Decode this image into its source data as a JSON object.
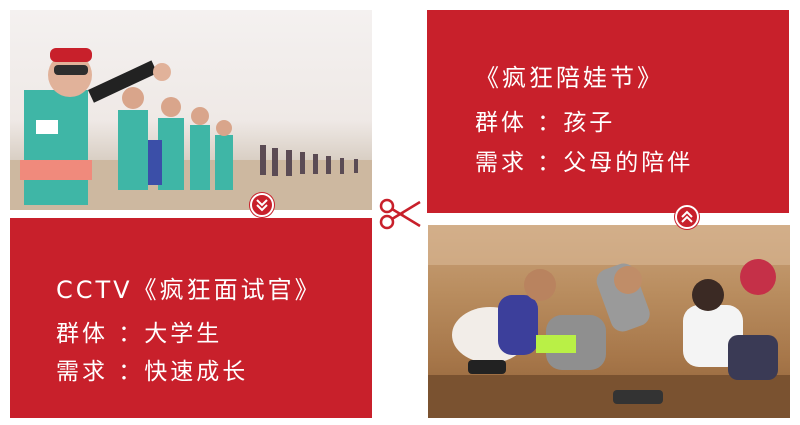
{
  "festival_card": {
    "title": "《疯狂陪娃节》",
    "group": "群体 ：孩子",
    "need": "需求 ：父母的陪伴"
  },
  "cctv_card": {
    "title": "CCTV《疯狂面试官》",
    "group": "群体 ：大学生",
    "need": "需求 ：快速成长"
  },
  "icons": {
    "down": "chevron-double-down-icon",
    "up": "chevron-double-up-icon",
    "scissors": "scissors-icon"
  },
  "colors": {
    "accent_red": "#c8202b",
    "text": "#ffffff"
  }
}
